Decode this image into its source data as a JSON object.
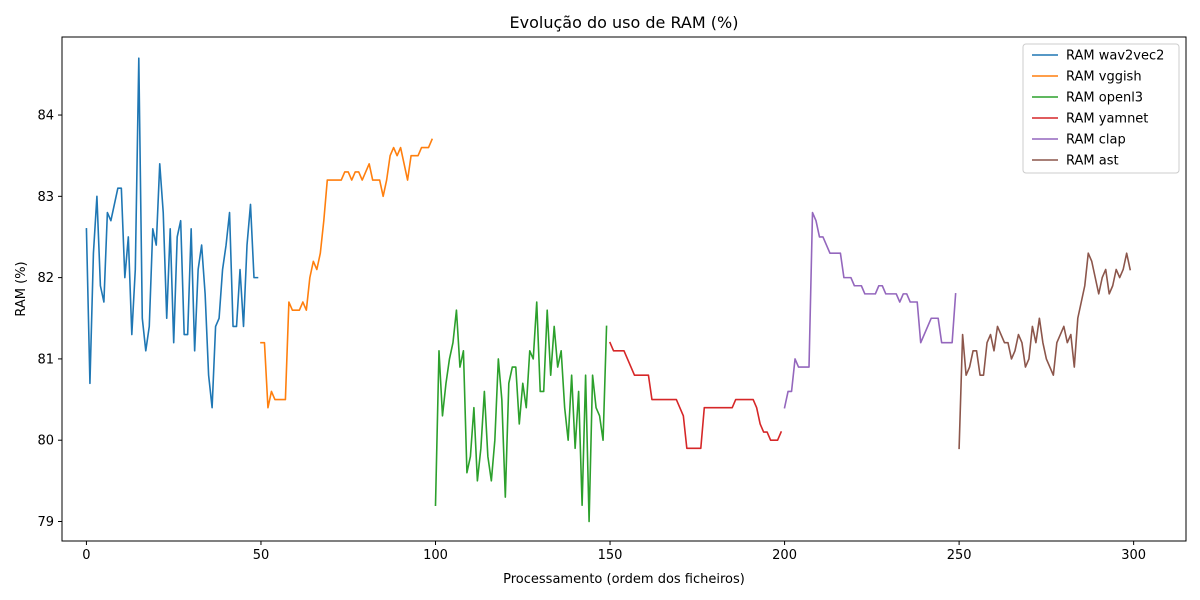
{
  "chart_data": {
    "type": "line",
    "title": "Evolução do uso de RAM (%)",
    "xlabel": "Processamento (ordem dos ficheiros)",
    "ylabel": "RAM (%)",
    "xlim": [
      -7,
      315
    ],
    "ylim": [
      78.76,
      84.96
    ],
    "xticks": [
      0,
      50,
      100,
      150,
      200,
      250,
      300
    ],
    "yticks": [
      79,
      80,
      81,
      82,
      83,
      84
    ],
    "grid": false,
    "legend_position": "top-right",
    "series": [
      {
        "name": "RAM wav2vec2",
        "color": "#1f77b4",
        "x": [
          0,
          1,
          2,
          3,
          4,
          5,
          6,
          7,
          8,
          9,
          10,
          11,
          12,
          13,
          14,
          15,
          16,
          17,
          18,
          19,
          20,
          21,
          22,
          23,
          24,
          25,
          26,
          27,
          28,
          29,
          30,
          31,
          32,
          33,
          34,
          35,
          36,
          37,
          38,
          39,
          40,
          41,
          42,
          43,
          44,
          45,
          46,
          47,
          48,
          49
        ],
        "y": [
          82.6,
          80.7,
          82.3,
          83.0,
          81.9,
          81.7,
          82.8,
          82.7,
          82.9,
          83.1,
          83.1,
          82.0,
          82.5,
          81.3,
          82.1,
          84.7,
          81.5,
          81.1,
          81.4,
          82.6,
          82.4,
          83.4,
          82.8,
          81.5,
          82.6,
          81.2,
          82.5,
          82.7,
          81.3,
          81.3,
          82.6,
          81.1,
          82.1,
          82.4,
          81.8,
          80.8,
          80.4,
          81.4,
          81.5,
          82.1,
          82.4,
          82.8,
          81.4,
          81.4,
          82.1,
          81.4,
          82.4,
          82.9,
          82.0,
          82.0
        ]
      },
      {
        "name": "RAM vggish",
        "color": "#ff7f0e",
        "x": [
          50,
          51,
          52,
          53,
          54,
          55,
          56,
          57,
          58,
          59,
          60,
          61,
          62,
          63,
          64,
          65,
          66,
          67,
          68,
          69,
          70,
          71,
          72,
          73,
          74,
          75,
          76,
          77,
          78,
          79,
          80,
          81,
          82,
          83,
          84,
          85,
          86,
          87,
          88,
          89,
          90,
          91,
          92,
          93,
          94,
          95,
          96,
          97,
          98,
          99
        ],
        "y": [
          81.2,
          81.2,
          80.4,
          80.6,
          80.5,
          80.5,
          80.5,
          80.5,
          81.7,
          81.6,
          81.6,
          81.6,
          81.7,
          81.6,
          82.0,
          82.2,
          82.1,
          82.3,
          82.7,
          83.2,
          83.2,
          83.2,
          83.2,
          83.2,
          83.3,
          83.3,
          83.2,
          83.3,
          83.3,
          83.2,
          83.3,
          83.4,
          83.2,
          83.2,
          83.2,
          83.0,
          83.2,
          83.5,
          83.6,
          83.5,
          83.6,
          83.4,
          83.2,
          83.5,
          83.5,
          83.5,
          83.6,
          83.6,
          83.6,
          83.7
        ]
      },
      {
        "name": "RAM openl3",
        "color": "#2ca02c",
        "x": [
          100,
          101,
          102,
          103,
          104,
          105,
          106,
          107,
          108,
          109,
          110,
          111,
          112,
          113,
          114,
          115,
          116,
          117,
          118,
          119,
          120,
          121,
          122,
          123,
          124,
          125,
          126,
          127,
          128,
          129,
          130,
          131,
          132,
          133,
          134,
          135,
          136,
          137,
          138,
          139,
          140,
          141,
          142,
          143,
          144,
          145,
          146,
          147,
          148,
          149
        ],
        "y": [
          79.2,
          81.1,
          80.3,
          80.7,
          81.0,
          81.2,
          81.6,
          80.9,
          81.1,
          79.6,
          79.8,
          80.4,
          79.5,
          79.9,
          80.6,
          79.8,
          79.5,
          80.0,
          81.0,
          80.5,
          79.3,
          80.7,
          80.9,
          80.9,
          80.2,
          80.7,
          80.4,
          81.1,
          81.0,
          81.7,
          80.6,
          80.6,
          81.6,
          80.8,
          81.4,
          80.9,
          81.1,
          80.4,
          80.0,
          80.8,
          79.9,
          80.6,
          79.2,
          80.8,
          79.0,
          80.8,
          80.4,
          80.3,
          80.0,
          81.4
        ]
      },
      {
        "name": "RAM yamnet",
        "color": "#d62728",
        "x": [
          150,
          151,
          152,
          153,
          154,
          155,
          156,
          157,
          158,
          159,
          160,
          161,
          162,
          163,
          164,
          165,
          166,
          167,
          168,
          169,
          170,
          171,
          172,
          173,
          174,
          175,
          176,
          177,
          178,
          179,
          180,
          181,
          182,
          183,
          184,
          185,
          186,
          187,
          188,
          189,
          190,
          191,
          192,
          193,
          194,
          195,
          196,
          197,
          198,
          199
        ],
        "y": [
          81.2,
          81.1,
          81.1,
          81.1,
          81.1,
          81.0,
          80.9,
          80.8,
          80.8,
          80.8,
          80.8,
          80.8,
          80.5,
          80.5,
          80.5,
          80.5,
          80.5,
          80.5,
          80.5,
          80.5,
          80.4,
          80.3,
          79.9,
          79.9,
          79.9,
          79.9,
          79.9,
          80.4,
          80.4,
          80.4,
          80.4,
          80.4,
          80.4,
          80.4,
          80.4,
          80.4,
          80.5,
          80.5,
          80.5,
          80.5,
          80.5,
          80.5,
          80.4,
          80.2,
          80.1,
          80.1,
          80.0,
          80.0,
          80.0,
          80.1
        ]
      },
      {
        "name": "RAM clap",
        "color": "#9467bd",
        "x": [
          200,
          201,
          202,
          203,
          204,
          205,
          206,
          207,
          208,
          209,
          210,
          211,
          212,
          213,
          214,
          215,
          216,
          217,
          218,
          219,
          220,
          221,
          222,
          223,
          224,
          225,
          226,
          227,
          228,
          229,
          230,
          231,
          232,
          233,
          234,
          235,
          236,
          237,
          238,
          239,
          240,
          241,
          242,
          243,
          244,
          245,
          246,
          247,
          248,
          249
        ],
        "y": [
          80.4,
          80.6,
          80.6,
          81.0,
          80.9,
          80.9,
          80.9,
          80.9,
          82.8,
          82.7,
          82.5,
          82.5,
          82.4,
          82.3,
          82.3,
          82.3,
          82.3,
          82.0,
          82.0,
          82.0,
          81.9,
          81.9,
          81.9,
          81.8,
          81.8,
          81.8,
          81.8,
          81.9,
          81.9,
          81.8,
          81.8,
          81.8,
          81.8,
          81.7,
          81.8,
          81.8,
          81.7,
          81.7,
          81.7,
          81.2,
          81.3,
          81.4,
          81.5,
          81.5,
          81.5,
          81.2,
          81.2,
          81.2,
          81.2,
          81.8
        ]
      },
      {
        "name": "RAM ast",
        "color": "#8c564b",
        "x": [
          250,
          251,
          252,
          253,
          254,
          255,
          256,
          257,
          258,
          259,
          260,
          261,
          262,
          263,
          264,
          265,
          266,
          267,
          268,
          269,
          270,
          271,
          272,
          273,
          274,
          275,
          276,
          277,
          278,
          279,
          280,
          281,
          282,
          283,
          284,
          285,
          286,
          287,
          288,
          289,
          290,
          291,
          292,
          293,
          294,
          295,
          296,
          297,
          298,
          299
        ],
        "y": [
          79.9,
          81.3,
          80.8,
          80.9,
          81.1,
          81.1,
          80.8,
          80.8,
          81.2,
          81.3,
          81.1,
          81.4,
          81.3,
          81.2,
          81.2,
          81.0,
          81.1,
          81.3,
          81.2,
          80.9,
          81.0,
          81.4,
          81.2,
          81.5,
          81.2,
          81.0,
          80.9,
          80.8,
          81.2,
          81.3,
          81.4,
          81.2,
          81.3,
          80.9,
          81.5,
          81.7,
          81.9,
          82.3,
          82.2,
          82.0,
          81.8,
          82.0,
          82.1,
          81.8,
          81.9,
          82.1,
          82.0,
          82.1,
          82.3,
          82.1
        ]
      }
    ]
  }
}
